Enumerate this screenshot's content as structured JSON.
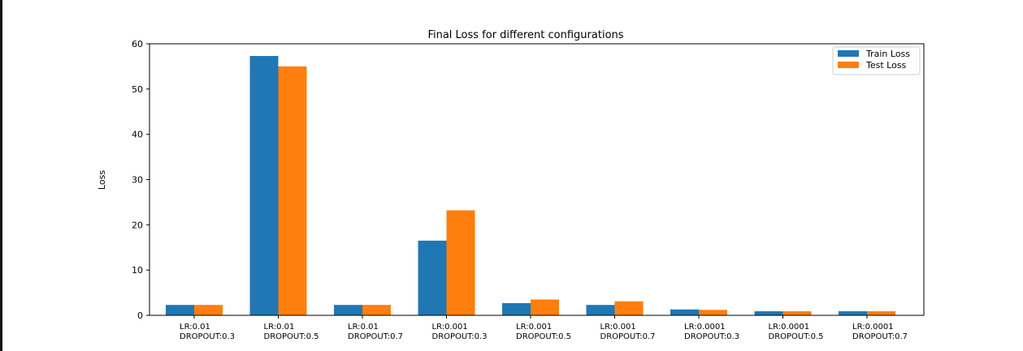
{
  "chart_data": {
    "type": "bar",
    "title": "Final Loss for different configurations",
    "xlabel": "",
    "ylabel": "Loss",
    "ylim": [
      0,
      60
    ],
    "yticks": [
      0,
      10,
      20,
      30,
      40,
      50,
      60
    ],
    "grid": false,
    "legend_position": "top-right",
    "categories": [
      [
        "LR:0.01",
        "DROPOUT:0.3"
      ],
      [
        "LR:0.01",
        "DROPOUT:0.5"
      ],
      [
        "LR:0.01",
        "DROPOUT:0.7"
      ],
      [
        "LR:0.001",
        "DROPOUT:0.3"
      ],
      [
        "LR:0.001",
        "DROPOUT:0.5"
      ],
      [
        "LR:0.001",
        "DROPOUT:0.7"
      ],
      [
        "LR:0.0001",
        "DROPOUT:0.3"
      ],
      [
        "LR:0.0001",
        "DROPOUT:0.5"
      ],
      [
        "LR:0.0001",
        "DROPOUT:0.7"
      ]
    ],
    "series": [
      {
        "name": "Train Loss",
        "color": "#1f77b4",
        "values": [
          2.3,
          57.3,
          2.3,
          16.5,
          2.7,
          2.3,
          1.3,
          0.9,
          0.9
        ]
      },
      {
        "name": "Test Loss",
        "color": "#ff7f0e",
        "values": [
          2.3,
          55.0,
          2.3,
          23.2,
          3.5,
          3.1,
          1.2,
          0.9,
          0.9
        ]
      }
    ]
  }
}
